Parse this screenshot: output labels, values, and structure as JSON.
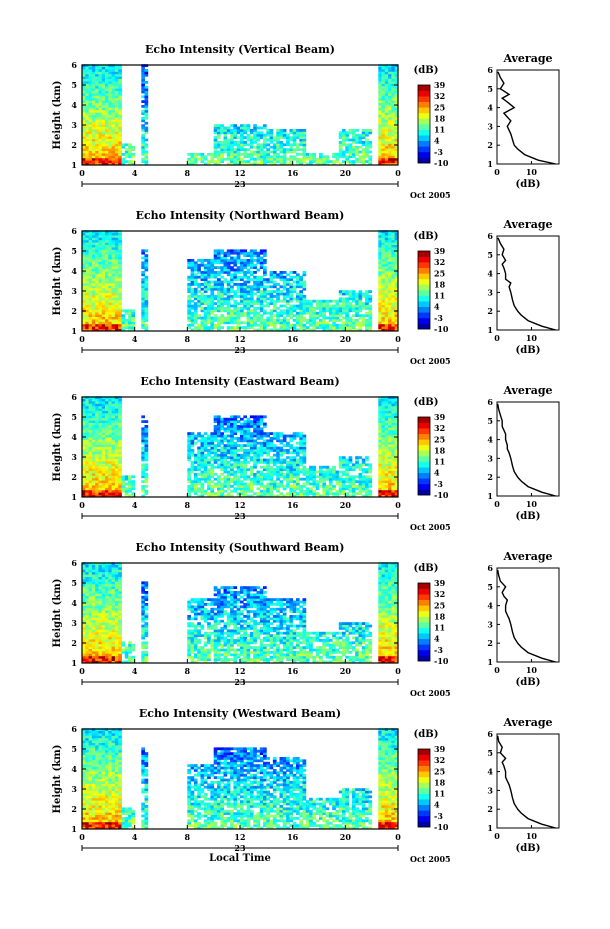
{
  "chart_data": [
    {
      "type": "heatmap",
      "title": "Echo Intensity (Vertical Beam)",
      "ylabel": "Height (km)",
      "xlabel": "",
      "x_ticks": [
        "0",
        "4",
        "8",
        "12",
        "16",
        "20",
        "0"
      ],
      "day_label": "23",
      "date_label": "Oct 2005",
      "ylim": [
        1,
        6
      ],
      "y_ticks": [
        "1",
        "2",
        "3",
        "4",
        "5",
        "6"
      ],
      "xlim_hours": [
        0,
        24
      ],
      "colorbar": {
        "label": "(dB)",
        "ticks": [
          "-10",
          "-3",
          "4",
          "11",
          "18",
          "25",
          "32",
          "39"
        ],
        "range": [
          -10,
          39
        ]
      },
      "profile": {
        "title": "Average",
        "xlabel": "(dB)",
        "x_ticks": [
          "0",
          "10"
        ],
        "y_ticks": [
          "1",
          "2",
          "3",
          "4",
          "5",
          "6"
        ],
        "xlim": [
          0,
          18
        ],
        "heights": [
          1.0,
          1.2,
          1.5,
          1.8,
          2.0,
          2.3,
          2.6,
          3.0,
          3.3,
          3.5,
          3.7,
          4.0,
          4.3,
          4.5,
          4.7,
          5.0,
          5.3,
          5.6,
          5.9
        ],
        "values": [
          17,
          12,
          8,
          6,
          5,
          4.5,
          4,
          3,
          4,
          3,
          2,
          5,
          3,
          1.5,
          3.5,
          1,
          2,
          1,
          0.3
        ]
      },
      "occupancy": [
        [
          0,
          3,
          6.0
        ],
        [
          3,
          4,
          2.0
        ],
        [
          4.3,
          5,
          6.0
        ],
        [
          5,
          8,
          0.6
        ],
        [
          8,
          10,
          1.6
        ],
        [
          10,
          14,
          3.0
        ],
        [
          14,
          17,
          2.8
        ],
        [
          17,
          19.5,
          1.6
        ],
        [
          19.5,
          22,
          2.8
        ],
        [
          22.5,
          24,
          6.0
        ]
      ]
    },
    {
      "type": "heatmap",
      "title": "Echo Intensity (Northward Beam)",
      "ylabel": "Height (km)",
      "xlabel": "",
      "x_ticks": [
        "0",
        "4",
        "8",
        "12",
        "16",
        "20",
        "0"
      ],
      "day_label": "23",
      "date_label": "Oct 2005",
      "ylim": [
        1,
        6
      ],
      "y_ticks": [
        "1",
        "2",
        "3",
        "4",
        "5",
        "6"
      ],
      "xlim_hours": [
        0,
        24
      ],
      "colorbar": {
        "label": "(dB)",
        "ticks": [
          "-10",
          "-3",
          "4",
          "11",
          "18",
          "25",
          "32",
          "39"
        ],
        "range": [
          -10,
          39
        ]
      },
      "profile": {
        "title": "Average",
        "xlabel": "(dB)",
        "x_ticks": [
          "0",
          "10"
        ],
        "y_ticks": [
          "1",
          "2",
          "3",
          "4",
          "5",
          "6"
        ],
        "xlim": [
          0,
          18
        ],
        "heights": [
          1.0,
          1.2,
          1.5,
          1.8,
          2.0,
          2.3,
          2.6,
          3.0,
          3.3,
          3.5,
          3.7,
          4.0,
          4.3,
          4.5,
          4.7,
          5.0,
          5.3,
          5.6,
          5.9
        ],
        "values": [
          17,
          13,
          9,
          7,
          6,
          5,
          4.5,
          4,
          3.5,
          4,
          2.5,
          2.5,
          2,
          1.5,
          2.5,
          1.5,
          2,
          1,
          0.3
        ]
      },
      "occupancy": [
        [
          0,
          3,
          6.0
        ],
        [
          3,
          4,
          2.0
        ],
        [
          4.3,
          5,
          5.0
        ],
        [
          5,
          8,
          1.0
        ],
        [
          8,
          10,
          4.5
        ],
        [
          10,
          14,
          5.0
        ],
        [
          14,
          17,
          4.0
        ],
        [
          17,
          19.5,
          2.5
        ],
        [
          19.5,
          22,
          3.0
        ],
        [
          22.5,
          24,
          6.0
        ]
      ]
    },
    {
      "type": "heatmap",
      "title": "Echo Intensity (Eastward Beam)",
      "ylabel": "Height (km)",
      "xlabel": "",
      "x_ticks": [
        "0",
        "4",
        "8",
        "12",
        "16",
        "20",
        "0"
      ],
      "day_label": "23",
      "date_label": "Oct 2005",
      "ylim": [
        1,
        6
      ],
      "y_ticks": [
        "1",
        "2",
        "3",
        "4",
        "5",
        "6"
      ],
      "xlim_hours": [
        0,
        24
      ],
      "colorbar": {
        "label": "(dB)",
        "ticks": [
          "-10",
          "-3",
          "4",
          "11",
          "18",
          "25",
          "32",
          "39"
        ],
        "range": [
          -10,
          39
        ]
      },
      "profile": {
        "title": "Average",
        "xlabel": "(dB)",
        "x_ticks": [
          "0",
          "10"
        ],
        "y_ticks": [
          "1",
          "2",
          "3",
          "4",
          "5",
          "6"
        ],
        "xlim": [
          0,
          18
        ],
        "heights": [
          1.0,
          1.2,
          1.5,
          1.8,
          2.0,
          2.3,
          2.6,
          3.0,
          3.3,
          3.5,
          3.7,
          4.0,
          4.3,
          4.5,
          4.7,
          5.0,
          5.3,
          5.6,
          5.9
        ],
        "values": [
          17,
          13,
          9,
          7,
          6,
          5,
          4.5,
          4,
          3.5,
          3,
          3,
          2.5,
          2.5,
          2,
          1.5,
          1.5,
          1,
          0.5,
          0.2
        ]
      },
      "occupancy": [
        [
          0,
          3,
          6.0
        ],
        [
          3,
          4,
          2.0
        ],
        [
          4.3,
          5,
          5.0
        ],
        [
          5,
          8,
          1.0
        ],
        [
          8,
          10,
          4.2
        ],
        [
          10,
          14,
          5.0
        ],
        [
          14,
          17,
          4.2
        ],
        [
          17,
          19.5,
          2.5
        ],
        [
          19.5,
          22,
          3.0
        ],
        [
          22.5,
          24,
          6.0
        ]
      ]
    },
    {
      "type": "heatmap",
      "title": "Echo Intensity (Southward Beam)",
      "ylabel": "Height (km)",
      "xlabel": "",
      "x_ticks": [
        "0",
        "4",
        "8",
        "12",
        "16",
        "20",
        "0"
      ],
      "day_label": "23",
      "date_label": "Oct 2005",
      "ylim": [
        1,
        6
      ],
      "y_ticks": [
        "1",
        "2",
        "3",
        "4",
        "5",
        "6"
      ],
      "xlim_hours": [
        0,
        24
      ],
      "colorbar": {
        "label": "(dB)",
        "ticks": [
          "-10",
          "-3",
          "4",
          "11",
          "18",
          "25",
          "32",
          "39"
        ],
        "range": [
          -10,
          39
        ]
      },
      "profile": {
        "title": "Average",
        "xlabel": "(dB)",
        "x_ticks": [
          "0",
          "10"
        ],
        "y_ticks": [
          "1",
          "2",
          "3",
          "4",
          "5",
          "6"
        ],
        "xlim": [
          0,
          18
        ],
        "heights": [
          1.0,
          1.2,
          1.5,
          1.8,
          2.0,
          2.3,
          2.6,
          3.0,
          3.3,
          3.5,
          3.7,
          4.0,
          4.3,
          4.5,
          4.7,
          5.0,
          5.3,
          5.6,
          5.9
        ],
        "values": [
          17,
          13,
          9,
          7,
          6,
          5,
          4.5,
          4,
          3.5,
          3,
          2.5,
          2.5,
          3,
          2,
          1.5,
          2.5,
          1,
          0.5,
          0.2
        ]
      },
      "occupancy": [
        [
          0,
          3,
          6.0
        ],
        [
          3,
          4,
          2.0
        ],
        [
          4.3,
          5,
          5.0
        ],
        [
          5,
          8,
          1.0
        ],
        [
          8,
          10,
          4.2
        ],
        [
          10,
          14,
          4.8
        ],
        [
          14,
          17,
          4.2
        ],
        [
          17,
          19.5,
          2.5
        ],
        [
          19.5,
          22,
          3.0
        ],
        [
          22.5,
          24,
          6.0
        ]
      ]
    },
    {
      "type": "heatmap",
      "title": "Echo Intensity (Westward Beam)",
      "ylabel": "Height (km)",
      "xlabel": "Local Time",
      "x_ticks": [
        "0",
        "4",
        "8",
        "12",
        "16",
        "20",
        "0"
      ],
      "day_label": "23",
      "date_label": "Oct 2005",
      "ylim": [
        1,
        6
      ],
      "y_ticks": [
        "1",
        "2",
        "3",
        "4",
        "5",
        "6"
      ],
      "xlim_hours": [
        0,
        24
      ],
      "colorbar": {
        "label": "(dB)",
        "ticks": [
          "-10",
          "-3",
          "4",
          "11",
          "18",
          "25",
          "32",
          "39"
        ],
        "range": [
          -10,
          39
        ]
      },
      "profile": {
        "title": "Average",
        "xlabel": "(dB)",
        "x_ticks": [
          "0",
          "10"
        ],
        "y_ticks": [
          "1",
          "2",
          "3",
          "4",
          "5",
          "6"
        ],
        "xlim": [
          0,
          18
        ],
        "heights": [
          1.0,
          1.2,
          1.5,
          1.8,
          2.0,
          2.3,
          2.6,
          3.0,
          3.3,
          3.5,
          3.7,
          4.0,
          4.3,
          4.5,
          4.7,
          5.0,
          5.3,
          5.6,
          5.9
        ],
        "values": [
          17,
          13,
          9,
          7,
          6,
          5,
          4.5,
          4,
          3.5,
          3,
          2.5,
          2.5,
          2,
          1.5,
          2.5,
          1,
          1.5,
          0.5,
          0.2
        ]
      },
      "occupancy": [
        [
          0,
          3,
          6.0
        ],
        [
          3,
          4,
          2.0
        ],
        [
          4.3,
          5,
          5.0
        ],
        [
          5,
          8,
          1.0
        ],
        [
          8,
          10,
          4.2
        ],
        [
          10,
          14,
          5.0
        ],
        [
          14,
          17,
          4.5
        ],
        [
          17,
          19.5,
          2.5
        ],
        [
          19.5,
          22,
          3.0
        ],
        [
          22.5,
          24,
          6.0
        ]
      ]
    }
  ]
}
